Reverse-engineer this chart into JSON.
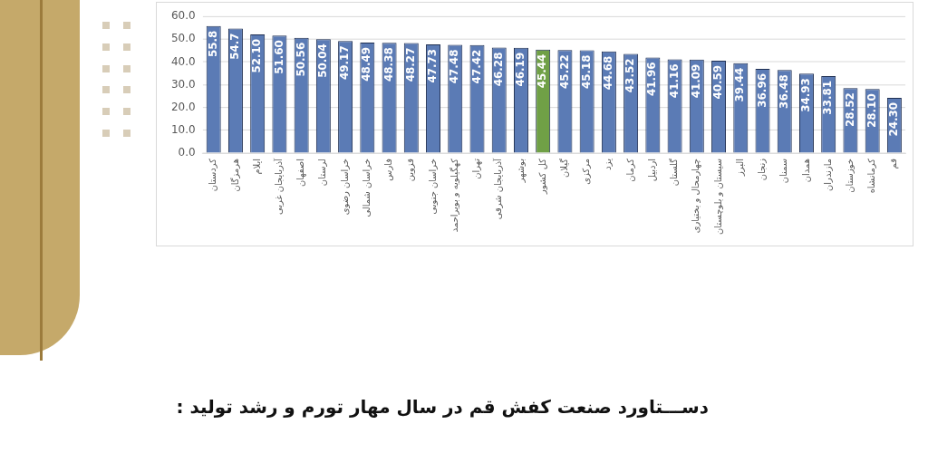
{
  "chart_data": {
    "type": "bar",
    "title": "دســـتاورد صنعت کفش قم در سال مهار تورم و رشد تولید :",
    "categories": [
      "کردستان",
      "هرمزگان",
      "ایلام",
      "آذربایجان غربی",
      "اصفهان",
      "لرستان",
      "خراسان رضوی",
      "خراسان شمالی",
      "فارس",
      "قزوین",
      "خراسان جنوبی",
      "کهگیلویه و بویراحمد",
      "تهران",
      "آذربایجان شرقی",
      "بوشهر",
      "کل کشور",
      "گیلان",
      "مرکزی",
      "یزد",
      "کرمان",
      "اردبیل",
      "گلستان",
      "چهارمحال و بختیاری",
      "سیستان و بلوچستان",
      "البرز",
      "زنجان",
      "سمنان",
      "همدان",
      "مازندران",
      "خوزستان",
      "کرمانشاه",
      "قم"
    ],
    "values": [
      55.8,
      54.7,
      52.1,
      51.6,
      50.56,
      50.04,
      49.17,
      48.49,
      48.38,
      48.27,
      47.73,
      47.48,
      47.42,
      46.28,
      46.19,
      45.44,
      45.22,
      45.18,
      44.68,
      43.52,
      41.96,
      41.16,
      41.09,
      40.59,
      39.44,
      36.96,
      36.48,
      34.93,
      33.81,
      28.52,
      28.1,
      24.3
    ],
    "value_labels": [
      "55.8",
      "54.7",
      "52.10",
      "51.60",
      "50.56",
      "50.04",
      "49.17",
      "48.49",
      "48.38",
      "48.27",
      "47.73",
      "47.48",
      "47.42",
      "46.28",
      "46.19",
      "45.44",
      "45.22",
      "45.18",
      "44.68",
      "43.52",
      "41.96",
      "41.16",
      "41.09",
      "40.59",
      "39.44",
      "36.96",
      "36.48",
      "34.93",
      "33.81",
      "28.52",
      "28.10",
      "24.30"
    ],
    "colors": [
      "#5b7bb5",
      "#5b7bb5",
      "#5b7bb5",
      "#5b7bb5",
      "#5b7bb5",
      "#5b7bb5",
      "#5b7bb5",
      "#5b7bb5",
      "#5b7bb5",
      "#5b7bb5",
      "#5b7bb5",
      "#5b7bb5",
      "#5b7bb5",
      "#5b7bb5",
      "#5b7bb5",
      "#70a046",
      "#5b7bb5",
      "#5b7bb5",
      "#5b7bb5",
      "#5b7bb5",
      "#5b7bb5",
      "#5b7bb5",
      "#5b7bb5",
      "#5b7bb5",
      "#5b7bb5",
      "#5b7bb5",
      "#5b7bb5",
      "#5b7bb5",
      "#5b7bb5",
      "#5b7bb5",
      "#5b7bb5",
      "#5b7bb5"
    ],
    "ylim": [
      0,
      60
    ],
    "yticks": [
      {
        "value": 0,
        "label": "0.0"
      },
      {
        "value": 10,
        "label": "10.0"
      },
      {
        "value": 20,
        "label": "20.0"
      },
      {
        "value": 30,
        "label": "30.0"
      },
      {
        "value": 40,
        "label": "40.0"
      },
      {
        "value": 50,
        "label": "50.0"
      },
      {
        "value": 60,
        "label": "60.0"
      }
    ],
    "grid": "y"
  }
}
